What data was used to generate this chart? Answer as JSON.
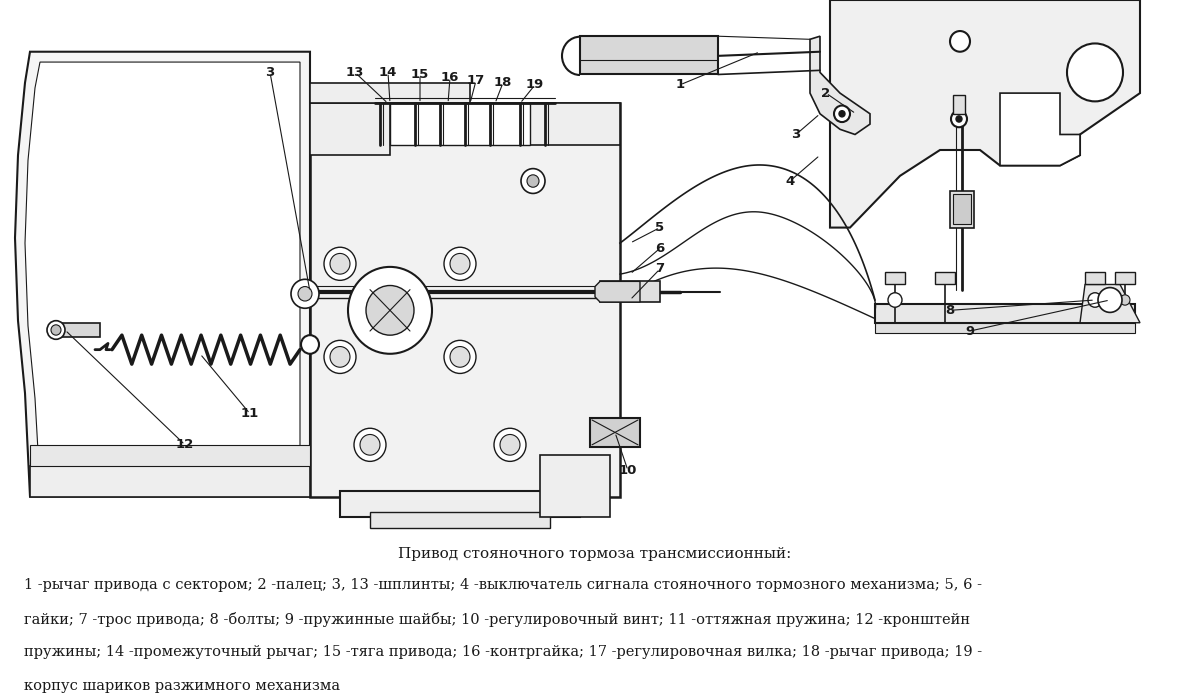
{
  "background_color": "#ffffff",
  "title": "Привод стояночного тормоза трансмиссионный:",
  "caption_lines": [
    "1 -рычаг привода с сектором; 2 -палец; 3, 13 -шплинты; 4 -выключатель сигнала стояночного тормозного механизма; 5, 6 -",
    "гайки; 7 -трос привода; 8 -болты; 9 -пружинные шайбы; 10 -регулировочный винт; 11 -оттяжная пружина; 12 -кронштейн",
    "пружины; 14 -промежуточный рычаг; 15 -тяга привода; 16 -контргайка; 17 -регулировочная вилка; 18 -рычаг привода; 19 -",
    "корпус шариков разжимного механизма"
  ],
  "title_fontsize": 11,
  "caption_fontsize": 10.5,
  "fig_width": 11.77,
  "fig_height": 6.94,
  "dpi": 100,
  "line_color": "#1a1a1a"
}
